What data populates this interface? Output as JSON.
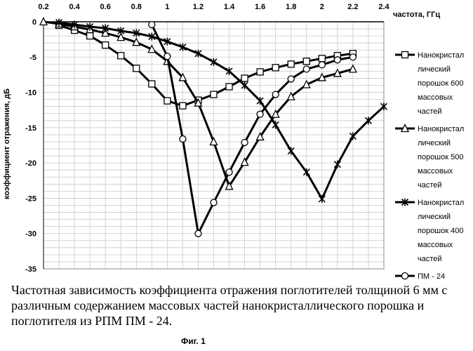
{
  "chart_data": {
    "type": "line",
    "xlabel": "частота, ГГц",
    "ylabel": "коэффициент отражения, дБ",
    "xlim": [
      0.2,
      2.4
    ],
    "ylim": [
      -35,
      0
    ],
    "x_ticks": [
      "0.2",
      "0.4",
      "0.6",
      "0.8",
      "1",
      "1.2",
      "1.4",
      "1.6",
      "1.8",
      "2",
      "2.2",
      "2.4"
    ],
    "y_ticks": [
      "0",
      "-5",
      "-10",
      "-15",
      "-20",
      "-25",
      "-30",
      "-35"
    ],
    "grid": true,
    "legend_position": "right",
    "series": [
      {
        "name": "Нанокристаллический порошок 600 массовых частей",
        "legend_lines": [
          "Нанокристал",
          "лический",
          "порошок 600",
          "массовых",
          "частей"
        ],
        "marker": "square",
        "x": [
          0.3,
          0.4,
          0.5,
          0.6,
          0.7,
          0.8,
          0.9,
          1.0,
          1.1,
          1.2,
          1.3,
          1.4,
          1.5,
          1.6,
          1.7,
          1.8,
          1.9,
          2.0,
          2.1,
          2.2
        ],
        "y": [
          -0.5,
          -1.2,
          -2.0,
          -3.3,
          -4.8,
          -6.6,
          -8.8,
          -11.2,
          -11.9,
          -11.1,
          -10.3,
          -9.2,
          -8.0,
          -7.1,
          -6.5,
          -6.0,
          -5.6,
          -5.2,
          -4.8,
          -4.5
        ]
      },
      {
        "name": "Нанокристаллический порошок 500 массовых частей",
        "legend_lines": [
          "Нанокристал",
          "лический",
          "порошок 500",
          "массовых",
          "частей"
        ],
        "marker": "triangle",
        "x": [
          0.2,
          0.3,
          0.4,
          0.5,
          0.6,
          0.7,
          0.8,
          0.9,
          1.0,
          1.1,
          1.2,
          1.3,
          1.4,
          1.5,
          1.6,
          1.7,
          1.8,
          1.9,
          2.0,
          2.1,
          2.2
        ],
        "y": [
          0.0,
          -0.3,
          -0.7,
          -1.1,
          -1.6,
          -2.2,
          -2.9,
          -3.9,
          -5.6,
          -7.9,
          -11.5,
          -17.0,
          -23.3,
          -19.9,
          -16.3,
          -13.1,
          -10.6,
          -8.9,
          -7.9,
          -7.3,
          -6.7
        ]
      },
      {
        "name": "Нанокристаллический порошок 400 массовых частей",
        "legend_lines": [
          "Нанокристал",
          "лический",
          "порошок 400",
          "массовых",
          "частей"
        ],
        "marker": "star",
        "x": [
          0.3,
          0.4,
          0.5,
          0.6,
          0.7,
          0.8,
          0.9,
          1.0,
          1.1,
          1.2,
          1.3,
          1.4,
          1.5,
          1.6,
          1.7,
          1.8,
          1.9,
          2.0,
          2.1,
          2.2,
          2.3,
          2.4
        ],
        "y": [
          -0.1,
          -0.4,
          -0.7,
          -0.9,
          -1.3,
          -1.6,
          -2.1,
          -2.8,
          -3.6,
          -4.5,
          -5.7,
          -7.0,
          -9.0,
          -11.2,
          -14.6,
          -18.3,
          -21.3,
          -25.1,
          -20.2,
          -16.2,
          -14.0,
          -12.0
        ]
      },
      {
        "name": "ПМ - 24",
        "legend_lines": [
          "ПМ - 24"
        ],
        "marker": "circle",
        "x": [
          0.9,
          1.0,
          1.1,
          1.2,
          1.3,
          1.4,
          1.5,
          1.6,
          1.7,
          1.8,
          1.9,
          2.0,
          2.1,
          2.2
        ],
        "y": [
          -0.4,
          -4.9,
          -16.6,
          -30.0,
          -25.6,
          -21.3,
          -17.1,
          -13.1,
          -10.3,
          -8.1,
          -6.7,
          -6.1,
          -5.4,
          -5.0
        ]
      }
    ]
  },
  "caption": "Частотная зависимость коэффициента отражения поглотителей толщиной 6 мм с различным содержанием массовых частей нанокристаллического порошка и поглотителя из РПМ ПМ - 24.",
  "figure_label": "Фиг. 1"
}
